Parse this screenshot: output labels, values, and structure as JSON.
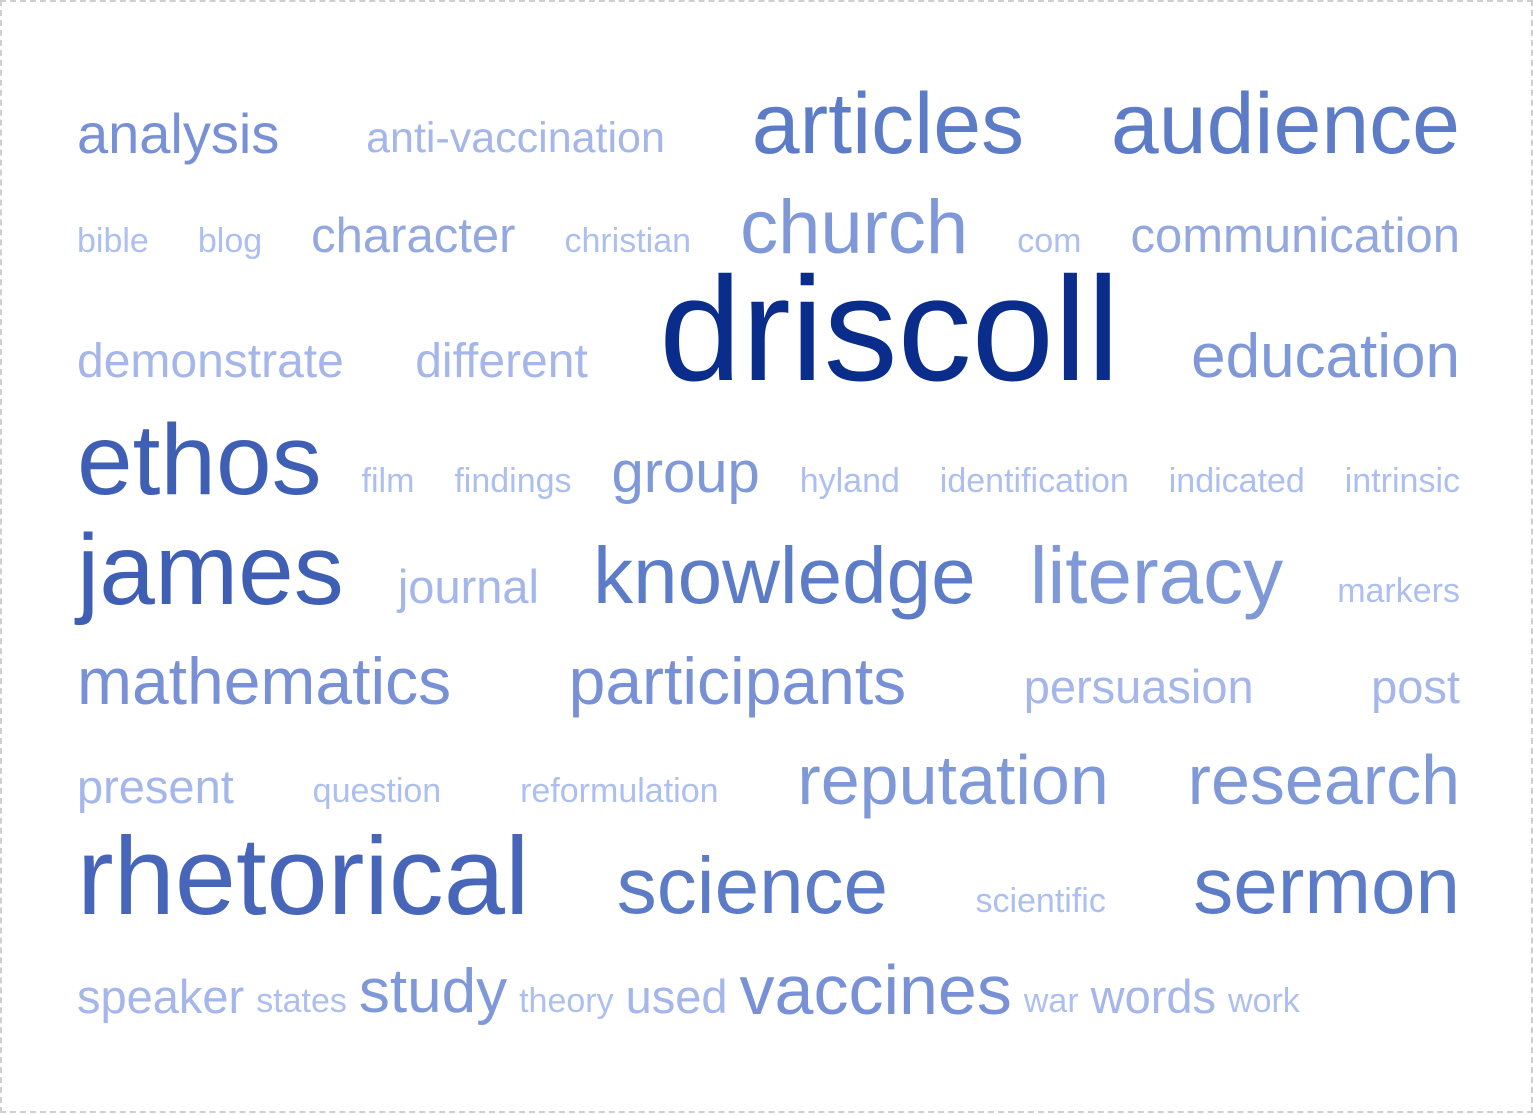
{
  "words": [
    {
      "text": "analysis",
      "color": "#7891d6"
    },
    {
      "text": "anti-vaccination",
      "color": "#a4b6ea"
    },
    {
      "text": "articles",
      "color": "#5c7cc8"
    },
    {
      "text": "audience",
      "color": "#5c7cc8"
    },
    {
      "text": "bible",
      "color": "#adbff0"
    },
    {
      "text": "blog",
      "color": "#adbff0"
    },
    {
      "text": "character",
      "color": "#94a8e0"
    },
    {
      "text": "christian",
      "color": "#adbff0"
    },
    {
      "text": "church",
      "color": "#7f98d8"
    },
    {
      "text": "com",
      "color": "#adbff0"
    },
    {
      "text": "communication",
      "color": "#94a8e0"
    },
    {
      "text": "driscoll",
      "color": "#0a2d8c"
    },
    {
      "text": "demonstrate",
      "color": "#a4b6ea"
    },
    {
      "text": "different",
      "color": "#a4b6ea"
    },
    {
      "text": "education",
      "color": "#7f98d8"
    },
    {
      "text": "ethos",
      "color": "#3f5fb4"
    },
    {
      "text": "film",
      "color": "#adbff0"
    },
    {
      "text": "findings",
      "color": "#adbff0"
    },
    {
      "text": "group",
      "color": "#7f98d8"
    },
    {
      "text": "hyland",
      "color": "#adbff0"
    },
    {
      "text": "identification",
      "color": "#adbff0"
    },
    {
      "text": "indicated",
      "color": "#adbff0"
    },
    {
      "text": "intrinsic",
      "color": "#adbff0"
    },
    {
      "text": "james",
      "color": "#3f5fb4"
    },
    {
      "text": "journal",
      "color": "#a4b6ea"
    },
    {
      "text": "knowledge",
      "color": "#5c7cc8"
    },
    {
      "text": "literacy",
      "color": "#7f98d8"
    },
    {
      "text": "markers",
      "color": "#adbff0"
    },
    {
      "text": "mathematics",
      "color": "#7891d6"
    },
    {
      "text": "participants",
      "color": "#7891d6"
    },
    {
      "text": "persuasion",
      "color": "#a4b6ea"
    },
    {
      "text": "post",
      "color": "#a4b6ea"
    },
    {
      "text": "present",
      "color": "#a4b6ea"
    },
    {
      "text": "question",
      "color": "#adbff0"
    },
    {
      "text": "reformulation",
      "color": "#adbff0"
    },
    {
      "text": "reputation",
      "color": "#7f98d8"
    },
    {
      "text": "research",
      "color": "#7f98d8"
    },
    {
      "text": "rhetorical",
      "color": "#4765b9"
    },
    {
      "text": "science",
      "color": "#5c7cc8"
    },
    {
      "text": "scientific",
      "color": "#adbff0"
    },
    {
      "text": "sermon",
      "color": "#5c7cc8"
    },
    {
      "text": "speaker",
      "color": "#a4b6ea"
    },
    {
      "text": "states",
      "color": "#adbff0"
    },
    {
      "text": "study",
      "color": "#7f98d8"
    },
    {
      "text": "theory",
      "color": "#adbff0"
    },
    {
      "text": "used",
      "color": "#a4b6ea"
    },
    {
      "text": "vaccines",
      "color": "#7891d6"
    },
    {
      "text": "war",
      "color": "#adbff0"
    },
    {
      "text": "words",
      "color": "#a4b6ea"
    },
    {
      "text": "work",
      "color": "#adbff0"
    }
  ]
}
